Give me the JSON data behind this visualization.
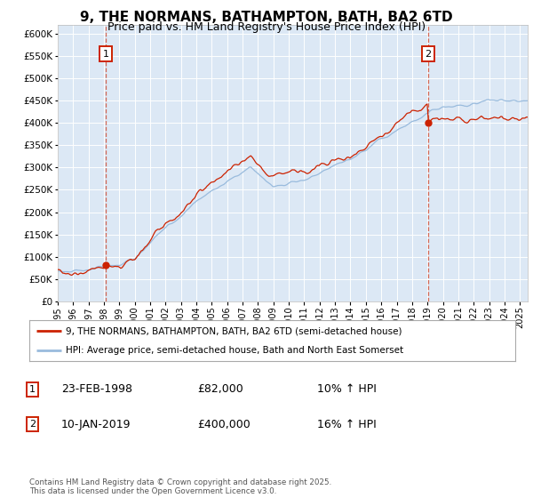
{
  "title": "9, THE NORMANS, BATHAMPTON, BATH, BA2 6TD",
  "subtitle": "Price paid vs. HM Land Registry's House Price Index (HPI)",
  "ylim": [
    0,
    620000
  ],
  "yticks": [
    0,
    50000,
    100000,
    150000,
    200000,
    250000,
    300000,
    350000,
    400000,
    450000,
    500000,
    550000,
    600000
  ],
  "background_color": "#dce8f5",
  "grid_color": "#ffffff",
  "line1_color": "#cc2200",
  "line2_color": "#99bbdd",
  "title_fontsize": 11,
  "subtitle_fontsize": 9,
  "legend_label1": "9, THE NORMANS, BATHAMPTON, BATH, BA2 6TD (semi-detached house)",
  "legend_label2": "HPI: Average price, semi-detached house, Bath and North East Somerset",
  "annotation1_date": "23-FEB-1998",
  "annotation1_price": "£82,000",
  "annotation1_hpi": "10% ↑ HPI",
  "annotation2_date": "10-JAN-2019",
  "annotation2_price": "£400,000",
  "annotation2_hpi": "16% ↑ HPI",
  "sale1_year": 1998.14,
  "sale1_price": 82000,
  "sale2_year": 2019.03,
  "sale2_price": 400000,
  "footer": "Contains HM Land Registry data © Crown copyright and database right 2025.\nThis data is licensed under the Open Government Licence v3.0.",
  "xmin": 1995,
  "xmax": 2025.5
}
